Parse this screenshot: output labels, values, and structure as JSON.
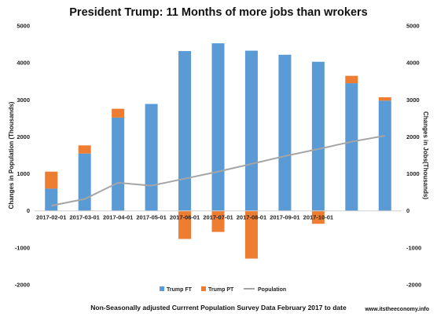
{
  "chart_data": {
    "type": "bar",
    "title": "President Trump: 11 Months of more jobs than wrokers",
    "categories": [
      "2017-02-01",
      "2017-03-01",
      "2017-04-01",
      "2017-05-01",
      "2017-06-01",
      "2017-07-01",
      "2017-08-01",
      "2017-09-01",
      "2017-10-01",
      "",
      ""
    ],
    "series": [
      {
        "name": "Trump FT",
        "color": "#5b9bd5",
        "kind": "stacked-bar",
        "values": [
          600,
          1550,
          2520,
          2890,
          4320,
          4530,
          4330,
          4220,
          4030,
          3450,
          2980
        ]
      },
      {
        "name": "Trump PT",
        "color": "#ed7d31",
        "kind": "stacked-bar",
        "values": [
          460,
          220,
          240,
          0,
          -760,
          -570,
          -1290,
          0,
          -350,
          200,
          90
        ]
      },
      {
        "name": "Population",
        "color": "#a5a5a5",
        "kind": "line",
        "values": [
          140,
          320,
          760,
          680,
          870,
          1060,
          1270,
          1480,
          1670,
          1870,
          2030
        ]
      }
    ],
    "ylim": [
      -2000,
      5000
    ],
    "yticks": [
      -2000,
      -1000,
      0,
      1000,
      2000,
      3000,
      4000,
      5000
    ],
    "ylabel_left": "Changes in Population (Thousands)",
    "ylabel_right": "Changes in Jobs(Thousands)",
    "grid": false,
    "legend_position": "bottom"
  },
  "legend": {
    "ft_label": "Trump FT",
    "pt_label": "Trump PT",
    "pop_label": "Population"
  },
  "footer": {
    "note": "Non-Seasonally adjusted Currrent Population Survey Data February 2017 to date",
    "credit": "www.itstheeconomy.info"
  }
}
